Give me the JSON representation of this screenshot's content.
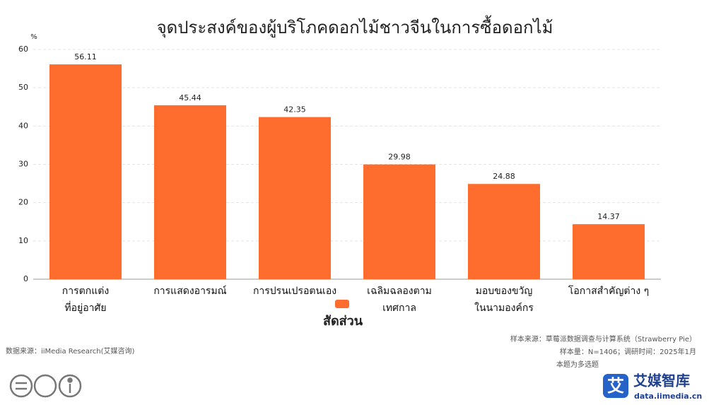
{
  "chart_data": {
    "type": "bar",
    "title": "จุดประสงค์ของผู้บริโภคดอกไม้ชาวจีนในการซื้อดอกไม้",
    "y_unit": "%",
    "categories": [
      "การตกแต่ง\nที่อยู่อาศัย",
      "การแสดงอารมณ์",
      "การปรนเปรอตนเอง",
      "เฉลิมฉลองตาม\nเทศกาล",
      "มอบของขวัญ\nในนามองค์กร",
      "โอกาสสำคัญต่าง ๆ"
    ],
    "series": [
      {
        "name": "สัดส่วน",
        "color": "#fe6d2d",
        "values": [
          56.11,
          45.44,
          42.35,
          29.98,
          24.88,
          14.37
        ]
      }
    ],
    "ylim": [
      0,
      60
    ],
    "yticks": [
      0,
      10,
      20,
      30,
      40,
      50,
      60
    ],
    "grid": true,
    "legend": "bottom"
  },
  "footer": {
    "source": "数据来源：iiMedia Research(艾媒咨询)",
    "sample_source": "样本来源：草莓派数据调查与计算系统（Strawberry Pie）",
    "sample_size": "样本量：N=1406；调研时间：2025年1月",
    "note": "本题为多选题",
    "logo_icon": "艾",
    "logo_name": "艾媒智库",
    "logo_url": "data.iimedia.cn"
  }
}
